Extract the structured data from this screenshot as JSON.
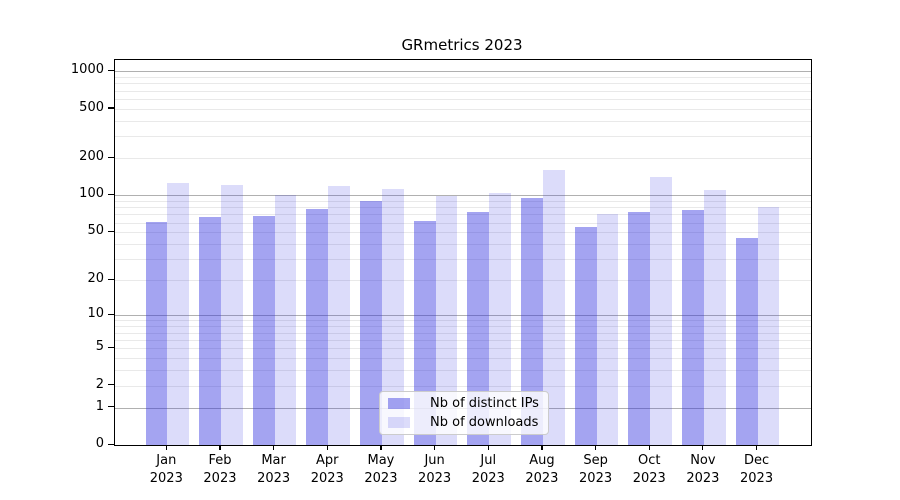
{
  "chart_data": {
    "type": "bar",
    "title": "GRmetrics 2023",
    "xlabel": "",
    "ylabel": "",
    "yscale": "log1p",
    "grid": true,
    "legend_position": "bottom-center-inside",
    "ymax": 1235,
    "yticks": [
      0,
      1,
      2,
      5,
      10,
      20,
      50,
      100,
      200,
      500,
      1000
    ],
    "major_gridline_values": [
      1,
      10,
      100,
      1000
    ],
    "categories": [
      "Jan",
      "Feb",
      "Mar",
      "Apr",
      "May",
      "Jun",
      "Jul",
      "Aug",
      "Sep",
      "Oct",
      "Nov",
      "Dec"
    ],
    "category_year": "2023",
    "series": [
      {
        "name": "Nb of distinct IPs",
        "color": "rgba(43,43,223,0.43)",
        "color_hex_on_white": "#a4a4f1",
        "values": [
          61,
          67,
          68,
          78,
          90,
          62,
          74,
          95,
          55,
          73,
          76,
          45
        ]
      },
      {
        "name": "Nb of downloads",
        "color": "rgba(43,43,223,0.165)",
        "color_hex_on_white": "#dcdcfa",
        "values": [
          125,
          121,
          101,
          120,
          113,
          99,
          105,
          161,
          70,
          141,
          111,
          81
        ]
      }
    ],
    "colors": {
      "major_gridline": "#b0b0b0",
      "minor_gridline": "#e9e9e9",
      "axis_spine": "#000000",
      "text": "#000000",
      "legend_border": "#cccccc",
      "background": "#ffffff"
    }
  }
}
